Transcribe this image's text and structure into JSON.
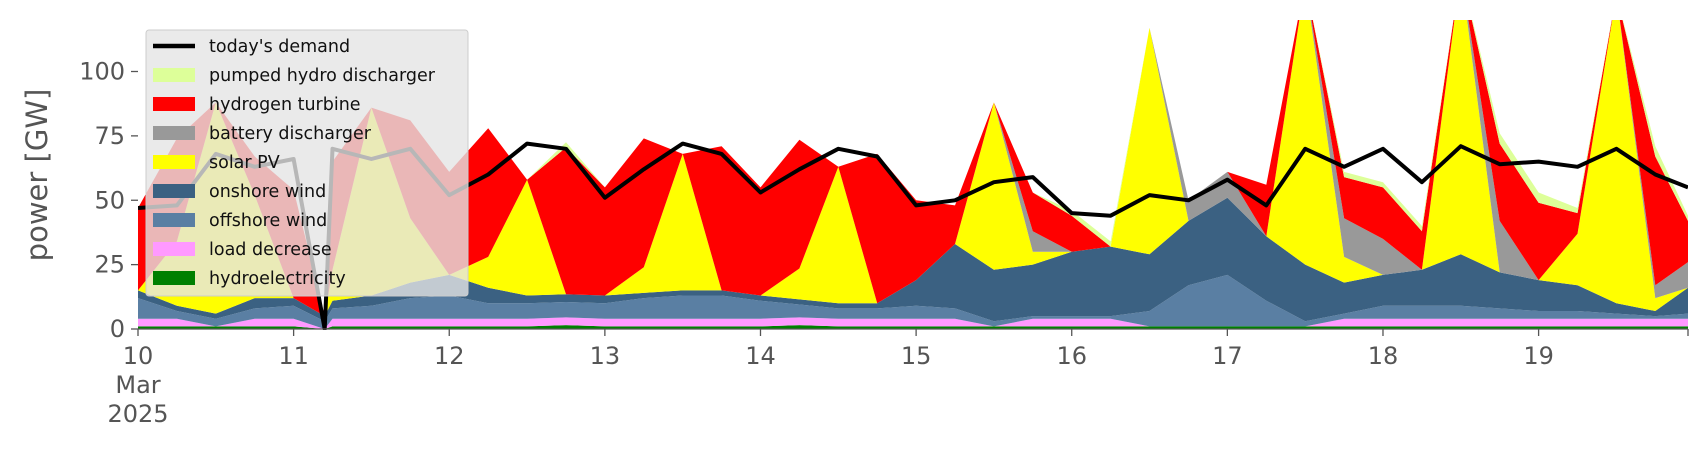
{
  "chart_data": {
    "type": "area",
    "ylabel": "power [GW]",
    "ylim": [
      0,
      120
    ],
    "y_ticks": [
      0,
      25,
      50,
      75,
      100
    ],
    "y_tick_labels": [
      "0",
      "25",
      "50",
      "75",
      "100"
    ],
    "xlim": [
      0,
      9.96
    ],
    "x_ticks": [
      0,
      1,
      2,
      3,
      4,
      5,
      6,
      7,
      8,
      9
    ],
    "x_tick_labels": [
      [
        "10",
        "Mar",
        "2025"
      ],
      [
        "11"
      ],
      [
        "12"
      ],
      [
        "13"
      ],
      [
        "14"
      ],
      [
        "15"
      ],
      [
        "16"
      ],
      [
        "17"
      ],
      [
        "18"
      ],
      [
        "19"
      ]
    ],
    "x_unit": "days since 10 Mar 2025",
    "grid": false,
    "legend_position": "top-left",
    "x": [
      0,
      0.25,
      0.5,
      0.75,
      1,
      1.2,
      1.25,
      1.5,
      1.75,
      2,
      2.25,
      2.5,
      2.75,
      3,
      3.25,
      3.5,
      3.75,
      4,
      4.25,
      4.5,
      4.75,
      5,
      5.25,
      5.5,
      5.75,
      6,
      6.25,
      6.5,
      6.75,
      7,
      7.25,
      7.5,
      7.75,
      8,
      8.25,
      8.5,
      8.75,
      9,
      9.25,
      9.5,
      9.75,
      9.96
    ],
    "series": [
      {
        "name": "hydroelectricity",
        "color": "#008000",
        "values": [
          1,
          1,
          1,
          1,
          1,
          0,
          1,
          1,
          1,
          1,
          1,
          1,
          1.5,
          1,
          1,
          1,
          1,
          1,
          1.5,
          1,
          1,
          1,
          1,
          1,
          1,
          1,
          1,
          1,
          1,
          1,
          1,
          1,
          1,
          1,
          1,
          1,
          1,
          1,
          1,
          1,
          1,
          1
        ]
      },
      {
        "name": "load decrease",
        "color": "#ff99ff",
        "values": [
          3,
          3,
          0,
          3,
          3,
          0,
          3,
          3,
          3,
          3,
          3,
          3,
          3,
          3,
          3,
          3,
          3,
          3,
          3,
          3,
          3,
          3,
          3,
          0,
          3,
          3,
          3,
          0,
          0,
          0,
          0,
          0,
          3,
          3,
          3,
          3,
          3,
          3,
          3,
          3,
          3,
          3
        ]
      },
      {
        "name": "offshore wind",
        "color": "#5a7fa3",
        "values": [
          8,
          3,
          3,
          4,
          5,
          3,
          4,
          5,
          8,
          9,
          6,
          6,
          6,
          6,
          8,
          9,
          9,
          7,
          5,
          4,
          4,
          5,
          4,
          2,
          1,
          1,
          1,
          6,
          16,
          20,
          10,
          2,
          2,
          5,
          5,
          5,
          4,
          3,
          3,
          2,
          1,
          2
        ]
      },
      {
        "name": "onshore wind",
        "color": "#3b6182",
        "values": [
          3,
          2,
          2,
          4,
          3,
          2,
          3,
          4,
          6,
          8,
          6,
          3,
          3,
          3,
          2,
          2,
          2,
          2,
          2,
          2,
          2,
          10,
          25,
          20,
          20,
          25,
          27,
          22,
          25,
          30,
          25,
          22,
          12,
          12,
          14,
          20,
          14,
          12,
          10,
          4,
          2,
          10
        ]
      },
      {
        "name": "solar PV",
        "color": "#ffff00",
        "values": [
          0,
          25,
          82,
          40,
          0,
          0,
          12,
          73,
          25,
          0,
          12,
          45,
          0,
          0,
          10,
          53,
          0,
          0,
          12,
          53,
          0,
          0,
          0,
          65,
          5,
          0,
          0,
          88,
          0,
          0,
          0,
          110,
          10,
          0,
          0,
          110,
          0,
          0,
          20,
          120,
          5,
          0
        ]
      },
      {
        "name": "battery discharger",
        "color": "#999999",
        "values": [
          0,
          0,
          0,
          0,
          0,
          0,
          0,
          0,
          0,
          0,
          0,
          0,
          0,
          0,
          0,
          0,
          0,
          0,
          0,
          0,
          0,
          0,
          0,
          0,
          8,
          0,
          0,
          0,
          8,
          10,
          0,
          0,
          15,
          14,
          0,
          0,
          20,
          0,
          0,
          0,
          5,
          10
        ]
      },
      {
        "name": "hydrogen turbine",
        "color": "#ff0000",
        "values": [
          32,
          40,
          0,
          15,
          42,
          0,
          42,
          0,
          38,
          40,
          50,
          0,
          57,
          42,
          50,
          0,
          56,
          42,
          50,
          0,
          58,
          31,
          15,
          0,
          15,
          14,
          0,
          0,
          0,
          0,
          20,
          0,
          16,
          20,
          15,
          0,
          30,
          30,
          8,
          0,
          50,
          16
        ]
      },
      {
        "name": "pumped hydro discharger",
        "color": "#ddff99",
        "values": [
          0,
          0,
          0,
          0,
          0,
          0,
          0,
          0,
          0,
          0,
          0,
          0,
          2,
          0,
          0,
          0,
          0,
          0,
          0,
          0,
          0,
          0,
          0,
          0,
          0,
          2,
          2,
          0,
          0,
          0,
          0,
          0,
          2,
          2,
          2,
          0,
          4,
          4,
          2,
          0,
          4,
          2
        ]
      }
    ],
    "demand": {
      "name": "today's demand",
      "color": "#000000",
      "values": [
        47,
        48,
        68,
        63,
        66,
        0,
        70,
        66,
        70,
        52,
        60,
        72,
        70,
        51,
        62,
        72,
        68,
        53,
        62,
        70,
        67,
        48,
        50,
        57,
        59,
        45,
        44,
        52,
        50,
        58,
        48,
        70,
        63,
        70,
        57,
        71,
        64,
        65,
        63,
        70,
        60,
        55
      ]
    },
    "legend": [
      {
        "label": "today's demand",
        "color": "#000000",
        "kind": "line"
      },
      {
        "label": "pumped hydro discharger",
        "color": "#ddff99",
        "kind": "patch"
      },
      {
        "label": "hydrogen turbine",
        "color": "#ff0000",
        "kind": "patch"
      },
      {
        "label": "battery discharger",
        "color": "#999999",
        "kind": "patch"
      },
      {
        "label": "solar PV",
        "color": "#ffff00",
        "kind": "patch"
      },
      {
        "label": "onshore wind",
        "color": "#3b6182",
        "kind": "patch"
      },
      {
        "label": "offshore wind",
        "color": "#5a7fa3",
        "kind": "patch"
      },
      {
        "label": "load decrease",
        "color": "#ff99ff",
        "kind": "patch"
      },
      {
        "label": "hydroelectricity",
        "color": "#008000",
        "kind": "patch"
      }
    ]
  }
}
